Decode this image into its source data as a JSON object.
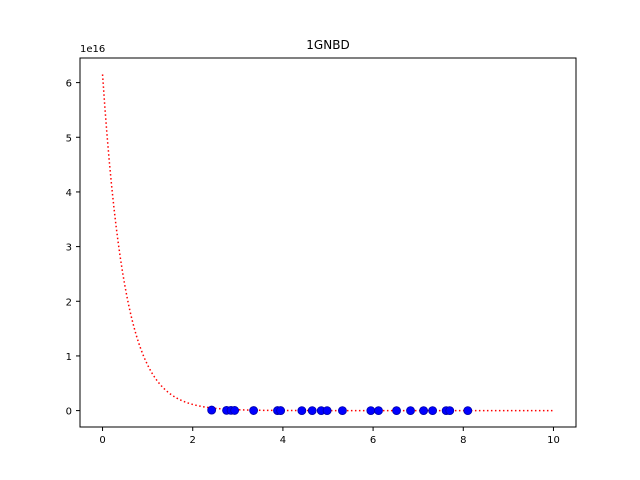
{
  "chart_data": {
    "type": "scatter",
    "title": "1GNBD",
    "xlabel": "",
    "ylabel": "",
    "y_offset_label": "1e16",
    "y_scale": 1e+16,
    "xlim": [
      -0.5,
      10.5
    ],
    "ylim": [
      -0.3,
      6.45
    ],
    "x_ticks": [
      0,
      2,
      4,
      6,
      8,
      10
    ],
    "y_ticks": [
      0,
      1,
      2,
      3,
      4,
      5,
      6
    ],
    "grid": false,
    "legend": "none",
    "colors": {
      "curve": "#ff0000",
      "points": "#0000ff",
      "point_edge": "#0000aa",
      "axis": "#000000"
    },
    "series": [
      {
        "kind": "curve",
        "style": "dotted",
        "formula_amplitude": 6.15,
        "formula_rate": 2.0,
        "x_start": 0,
        "x_end": 10,
        "samples": 200
      },
      {
        "kind": "points",
        "x": [
          2.42,
          2.75,
          2.85,
          2.93,
          3.35,
          3.88,
          3.95,
          4.42,
          4.65,
          4.85,
          4.98,
          5.32,
          5.95,
          6.12,
          6.52,
          6.83,
          7.12,
          7.32,
          7.62,
          7.7,
          8.1
        ],
        "y": [
          0.0095,
          0.0044,
          0.0035,
          0.0029,
          0.0011,
          0.0003,
          0.0003,
          0.0001,
          0.0001,
          0.0,
          0.0,
          0.0,
          0.0,
          0.0,
          0.0,
          0.0,
          0.0,
          0.0,
          0.0,
          0.0,
          0.0
        ]
      }
    ]
  }
}
